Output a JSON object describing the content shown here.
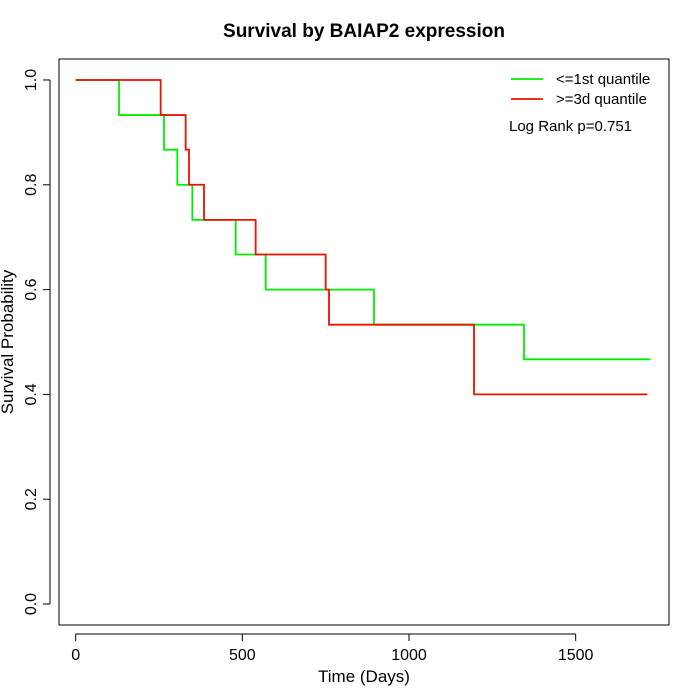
{
  "chart_data": {
    "type": "line",
    "title": "Survival by BAIAP2 expression",
    "xlabel": "Time (Days)",
    "ylabel": "Survival Probability",
    "xlim": [
      -50,
      1780
    ],
    "ylim": [
      -0.04,
      1.04
    ],
    "xticks": [
      0,
      500,
      1000,
      1500
    ],
    "yticks": [
      0.0,
      0.2,
      0.4,
      0.6,
      0.8,
      1.0
    ],
    "xtick_labels": [
      "0",
      "500",
      "1000",
      "1500"
    ],
    "ytick_labels": [
      "0.0",
      "0.2",
      "0.4",
      "0.6",
      "0.8",
      "1.0"
    ],
    "grid": false,
    "legend_position": "top-right",
    "annotation": "Log Rank p=0.751",
    "series": [
      {
        "name": "<=1st quantile",
        "color": "#00ee00",
        "step": true,
        "x": [
          0,
          130,
          265,
          305,
          350,
          480,
          570,
          895,
          1345,
          1725
        ],
        "y": [
          1.0,
          0.933,
          0.867,
          0.8,
          0.733,
          0.667,
          0.6,
          0.533,
          0.467,
          0.467
        ]
      },
      {
        "name": ">=3d quantile",
        "color": "#ee1100",
        "step": true,
        "x": [
          0,
          255,
          330,
          340,
          385,
          540,
          750,
          760,
          1195,
          1715
        ],
        "y": [
          1.0,
          0.933,
          0.867,
          0.8,
          0.733,
          0.667,
          0.6,
          0.533,
          0.4,
          0.4
        ]
      }
    ]
  }
}
